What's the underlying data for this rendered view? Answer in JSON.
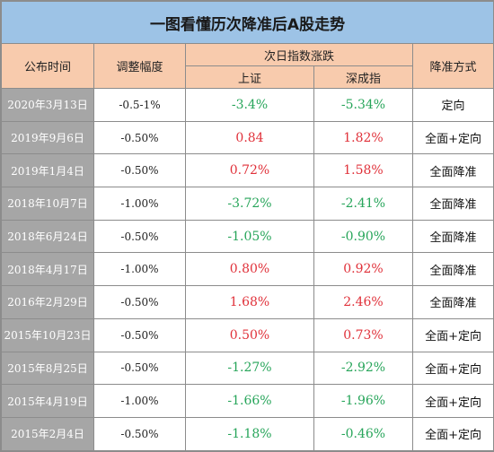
{
  "title": "一图看懂历次降准后A股走势",
  "headers": {
    "date": "公布时间",
    "adjust": "调整幅度",
    "next_day": "次日指数涨跌",
    "sh": "上证",
    "sz": "深成指",
    "method": "降准方式"
  },
  "colors": {
    "up": "#e0313a",
    "down": "#27a55a",
    "date_bg": "#a6a6a6",
    "header_bg": "#f8cbad",
    "title_bg": "#9dc3e6"
  },
  "rows": [
    {
      "date": "2020年3月13日",
      "adjust": "-0.5-1%",
      "sh": "-3.4%",
      "sz": "-5.34%",
      "method": "定向"
    },
    {
      "date": "2019年9月6日",
      "adjust": "-0.50%",
      "sh": "0.84",
      "sz": "1.82%",
      "method": "全面+定向"
    },
    {
      "date": "2019年1月4日",
      "adjust": "-0.50%",
      "sh": "0.72%",
      "sz": "1.58%",
      "method": "全面降准"
    },
    {
      "date": "2018年10月7日",
      "adjust": "-1.00%",
      "sh": "-3.72%",
      "sz": "-2.41%",
      "method": "全面降准"
    },
    {
      "date": "2018年6月24日",
      "adjust": "-0.50%",
      "sh": "-1.05%",
      "sz": "-0.90%",
      "method": "全面降准"
    },
    {
      "date": "2018年4月17日",
      "adjust": "-1.00%",
      "sh": "0.80%",
      "sz": "0.92%",
      "method": "全面降准"
    },
    {
      "date": "2016年2月29日",
      "adjust": "-0.50%",
      "sh": "1.68%",
      "sz": "2.46%",
      "method": "全面降准"
    },
    {
      "date": "2015年10月23日",
      "adjust": "-0.50%",
      "sh": "0.50%",
      "sz": "0.73%",
      "method": "全面+定向"
    },
    {
      "date": "2015年8月25日",
      "adjust": "-0.50%",
      "sh": "-1.27%",
      "sz": "-2.92%",
      "method": "全面+定向"
    },
    {
      "date": "2015年4月19日",
      "adjust": "-1.00%",
      "sh": "-1.66%",
      "sz": "-1.96%",
      "method": "全面+定向"
    },
    {
      "date": "2015年2月4日",
      "adjust": "-0.50%",
      "sh": "-1.18%",
      "sz": "-0.46%",
      "method": "全面+定向"
    }
  ]
}
